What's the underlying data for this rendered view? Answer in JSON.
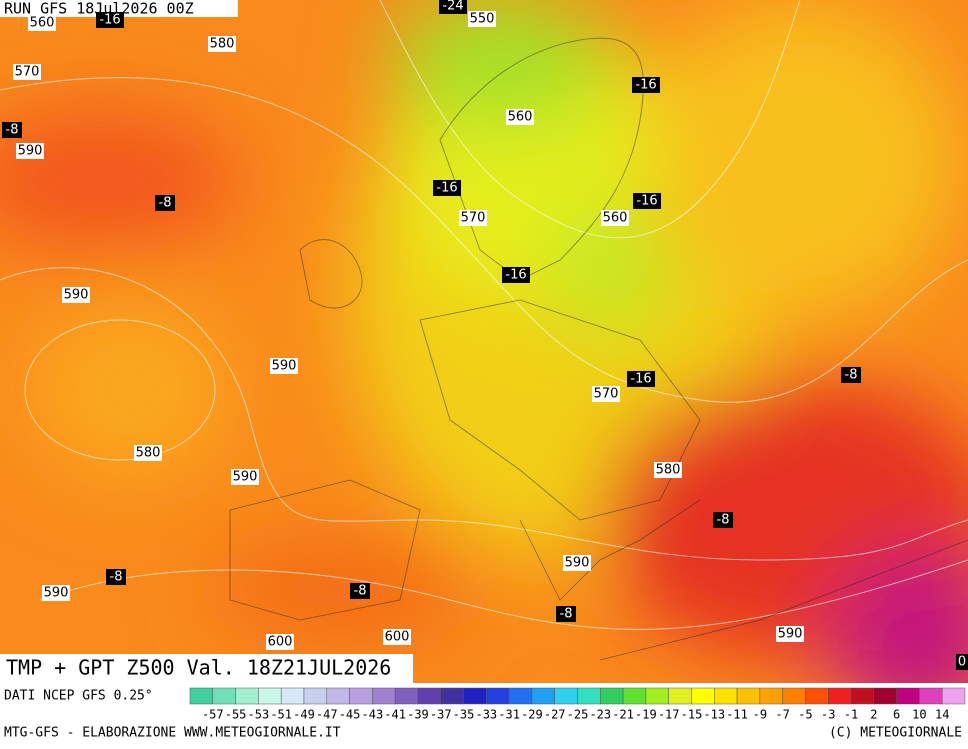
{
  "header": {
    "run": "RUN GFS 18Jul2026 00Z",
    "title": "TMP + GPT Z500 Val. 18Z21JUL2026"
  },
  "map": {
    "isohypse_labels": [
      550,
      580,
      570,
      560,
      590,
      570,
      560,
      590,
      590,
      570,
      580,
      590,
      580,
      590,
      590,
      600,
      600,
      590,
      560
    ],
    "temperature_labels": [
      -24,
      -16,
      -16,
      -8,
      -8,
      -16,
      -16,
      -16,
      -16,
      -8,
      -8,
      -8,
      -8,
      -8,
      0
    ]
  },
  "legend": {
    "source": "DATI NCEP GFS 0.25°",
    "labels": [
      -57,
      -55,
      -53,
      -51,
      -49,
      -47,
      -45,
      -43,
      -41,
      -39,
      -37,
      -35,
      -33,
      -31,
      -29,
      -27,
      -25,
      -23,
      -21,
      -19,
      -17,
      -15,
      -13,
      -11,
      -9,
      -7,
      -5,
      -3,
      -1,
      2,
      6,
      10,
      14
    ],
    "colors": [
      "#40d0a0",
      "#70e0b8",
      "#a0f0d0",
      "#c8f8e8",
      "#d8e8f8",
      "#c8d0f0",
      "#c0b8e8",
      "#b8a0e0",
      "#a080d0",
      "#8060c0",
      "#6040b0",
      "#4030a0",
      "#2020c0",
      "#2040e0",
      "#2070f0",
      "#20a0f0",
      "#30d0f0",
      "#30e0c0",
      "#30d060",
      "#60e030",
      "#a0f020",
      "#e0f020",
      "#ffff00",
      "#ffe000",
      "#ffc000",
      "#ffa000",
      "#ff8000",
      "#ff5000",
      "#f02020",
      "#c01020",
      "#a00030",
      "#c00080",
      "#e040c0",
      "#f0a0f0"
    ]
  },
  "footer": {
    "left": "MTG-GFS - ELABORAZIONE WWW.METEOGIORNALE.IT",
    "right": "(C) METEOGIORNALE"
  }
}
